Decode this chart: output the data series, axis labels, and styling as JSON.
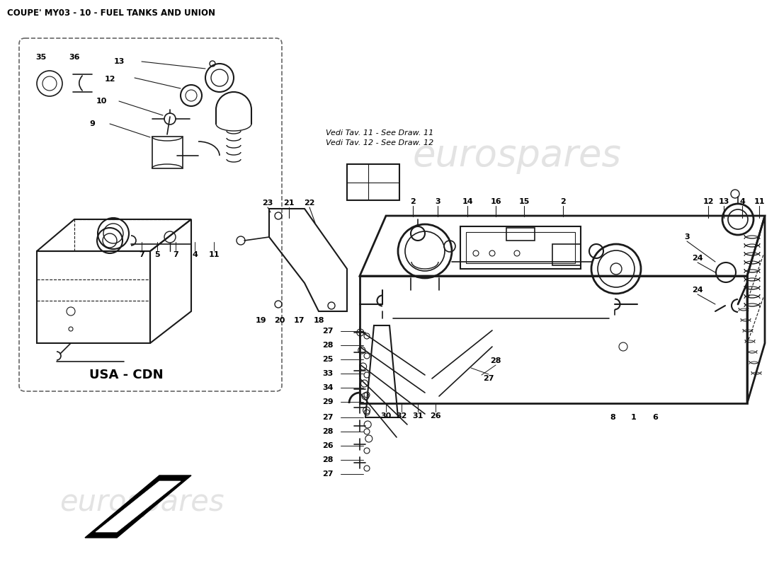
{
  "title": "COUPE' MY03 - 10 - FUEL TANKS AND UNION",
  "title_fontsize": 8.5,
  "background_color": "#ffffff",
  "watermark_text": "eurospares",
  "watermark_color": "#cccccc",
  "note_text1": "Vedi Tav. 11 - See Draw. 11",
  "note_text2": "Vedi Tav. 12 - See Draw. 12",
  "usa_cdn_label": "USA - CDN",
  "fig_width": 11.0,
  "fig_height": 8.0,
  "dpi": 100,
  "line_color": "#1a1a1a",
  "label_fontsize": 8.0
}
